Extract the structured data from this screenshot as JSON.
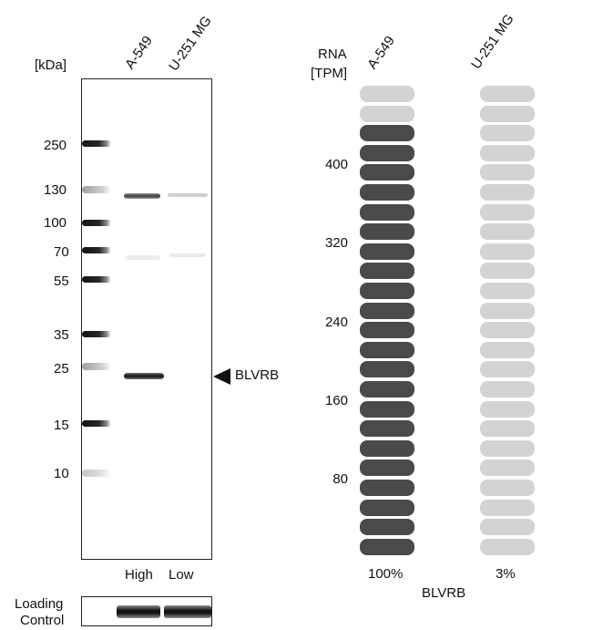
{
  "western_blot": {
    "unit_label": "[kDa]",
    "lanes": [
      "A-549",
      "U-251 MG"
    ],
    "markers": [
      "250",
      "130",
      "100",
      "70",
      "55",
      "35",
      "25",
      "15",
      "10"
    ],
    "target_label": "BLVRB",
    "expression_labels": [
      "High",
      "Low"
    ],
    "loading_control_label_line1": "Loading",
    "loading_control_label_line2": "Control"
  },
  "rna_panel": {
    "axis_title_line1": "RNA",
    "axis_title_line2": "[TPM]",
    "ticks": [
      "400",
      "320",
      "240",
      "160",
      "80"
    ],
    "gene": "BLVRB",
    "colors": {
      "high": "#4a4a4a",
      "low": "#d3d3d3"
    }
  },
  "chart_data": {
    "type": "bar",
    "categories": [
      "A-549",
      "U-251 MG"
    ],
    "series": [
      {
        "values": [
          100,
          3
        ]
      }
    ],
    "value_labels": [
      "100%",
      "3%"
    ],
    "ylabel": "RNA [TPM]",
    "ytick_labels": [
      "80",
      "160",
      "240",
      "320",
      "400"
    ],
    "segments_total": 24,
    "segments_filled": [
      22,
      0
    ]
  }
}
